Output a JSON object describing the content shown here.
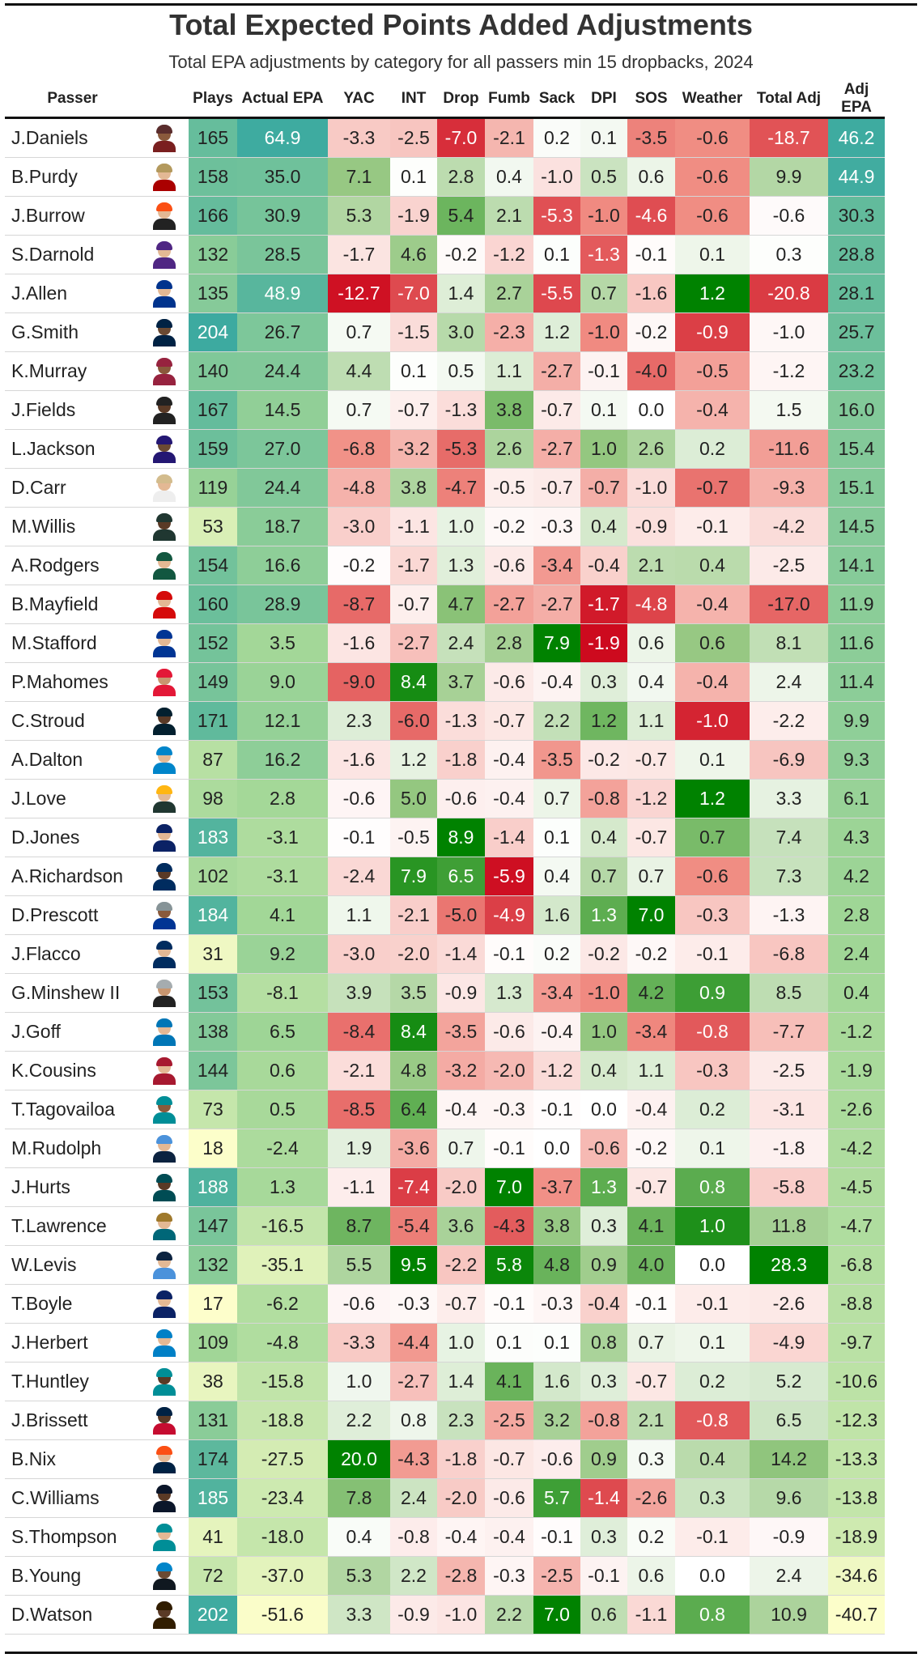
{
  "title": "Total Expected Points Added Adjustments",
  "subtitle": "Total EPA adjustments by category for all passers min 15 dropbacks, 2024",
  "chart_data": {
    "type": "table",
    "title": "Total Expected Points Added Adjustments",
    "subtitle": "Total EPA adjustments by category for all passers min 15 dropbacks, 2024",
    "columns": [
      "Passer",
      "Plays",
      "Actual EPA",
      "YAC",
      "INT",
      "Drop",
      "Fumb",
      "Sack",
      "DPI",
      "SOS",
      "Weather",
      "Total Adj",
      "Adj EPA"
    ],
    "rows": [
      {
        "passer": "J.Daniels",
        "plays": "165",
        "actual": "64.9",
        "yac": "-3.3",
        "int": "-2.5",
        "drop": "-7.0",
        "fumb": "-2.1",
        "sack": "0.2",
        "dpi": "0.1",
        "sos": "-3.5",
        "weather": "-0.6",
        "total": "-18.7",
        "adj": "46.2",
        "team": "#5a2d2d",
        "body": "#7a1f1f",
        "skin": "#8a5a3c"
      },
      {
        "passer": "B.Purdy",
        "plays": "158",
        "actual": "35.0",
        "yac": "7.1",
        "int": "0.1",
        "drop": "2.8",
        "fumb": "0.4",
        "sack": "-1.0",
        "dpi": "0.5",
        "sos": "0.6",
        "weather": "-0.6",
        "total": "9.9",
        "adj": "44.9",
        "team": "#b3995d",
        "body": "#aa0000",
        "skin": "#e3b894"
      },
      {
        "passer": "J.Burrow",
        "plays": "166",
        "actual": "30.9",
        "yac": "5.3",
        "int": "-1.9",
        "drop": "5.4",
        "fumb": "2.1",
        "sack": "-5.3",
        "dpi": "-1.0",
        "sos": "-4.6",
        "weather": "-0.6",
        "total": "-0.6",
        "adj": "30.3",
        "team": "#fb4f14",
        "body": "#222222",
        "skin": "#e3b894"
      },
      {
        "passer": "S.Darnold",
        "plays": "132",
        "actual": "28.5",
        "yac": "-1.7",
        "int": "4.6",
        "drop": "-0.2",
        "fumb": "-1.2",
        "sack": "0.1",
        "dpi": "-1.3",
        "sos": "-0.1",
        "weather": "0.1",
        "total": "0.3",
        "adj": "28.8",
        "team": "#4f2683",
        "body": "#4f2683",
        "skin": "#e3b894"
      },
      {
        "passer": "J.Allen",
        "plays": "135",
        "actual": "48.9",
        "yac": "-12.7",
        "int": "-7.0",
        "drop": "1.4",
        "fumb": "2.7",
        "sack": "-5.5",
        "dpi": "0.7",
        "sos": "-1.6",
        "weather": "1.2",
        "total": "-20.8",
        "adj": "28.1",
        "team": "#00338d",
        "body": "#00338d",
        "skin": "#e3b894"
      },
      {
        "passer": "G.Smith",
        "plays": "204",
        "actual": "26.7",
        "yac": "0.7",
        "int": "-1.5",
        "drop": "3.0",
        "fumb": "-2.3",
        "sack": "1.2",
        "dpi": "-1.0",
        "sos": "-0.2",
        "weather": "-0.9",
        "total": "-1.0",
        "adj": "25.7",
        "team": "#002244",
        "body": "#002244",
        "skin": "#6b4a33"
      },
      {
        "passer": "K.Murray",
        "plays": "140",
        "actual": "24.4",
        "yac": "4.4",
        "int": "0.1",
        "drop": "0.5",
        "fumb": "1.1",
        "sack": "-2.7",
        "dpi": "-0.1",
        "sos": "-4.0",
        "weather": "-0.5",
        "total": "-1.2",
        "adj": "23.2",
        "team": "#97233f",
        "body": "#97233f",
        "skin": "#8a5a3c"
      },
      {
        "passer": "J.Fields",
        "plays": "167",
        "actual": "14.5",
        "yac": "0.7",
        "int": "-0.7",
        "drop": "-1.3",
        "fumb": "3.8",
        "sack": "-0.7",
        "dpi": "0.1",
        "sos": "0.0",
        "weather": "-0.4",
        "total": "1.5",
        "adj": "16.0",
        "team": "#222222",
        "body": "#222222",
        "skin": "#5a3a26"
      },
      {
        "passer": "L.Jackson",
        "plays": "159",
        "actual": "27.0",
        "yac": "-6.8",
        "int": "-3.2",
        "drop": "-5.3",
        "fumb": "2.6",
        "sack": "-2.7",
        "dpi": "1.0",
        "sos": "2.6",
        "weather": "0.2",
        "total": "-11.6",
        "adj": "15.4",
        "team": "#241773",
        "body": "#241773",
        "skin": "#6b4a33"
      },
      {
        "passer": "D.Carr",
        "plays": "119",
        "actual": "24.4",
        "yac": "-4.8",
        "int": "3.8",
        "drop": "-4.7",
        "fumb": "-0.5",
        "sack": "-0.7",
        "dpi": "-0.7",
        "sos": "-1.0",
        "weather": "-0.7",
        "total": "-9.3",
        "adj": "15.1",
        "team": "#d3bc8d",
        "body": "#eeeeee",
        "skin": "#e3b894"
      },
      {
        "passer": "M.Willis",
        "plays": "53",
        "actual": "18.7",
        "yac": "-3.0",
        "int": "-1.1",
        "drop": "1.0",
        "fumb": "-0.2",
        "sack": "-0.3",
        "dpi": "0.4",
        "sos": "-0.9",
        "weather": "-0.1",
        "total": "-4.2",
        "adj": "14.5",
        "team": "#203731",
        "body": "#203731",
        "skin": "#5a3a26"
      },
      {
        "passer": "A.Rodgers",
        "plays": "154",
        "actual": "16.6",
        "yac": "-0.2",
        "int": "-1.7",
        "drop": "1.3",
        "fumb": "-0.6",
        "sack": "-3.4",
        "dpi": "-0.4",
        "sos": "2.1",
        "weather": "0.4",
        "total": "-2.5",
        "adj": "14.1",
        "team": "#125740",
        "body": "#125740",
        "skin": "#e3b894"
      },
      {
        "passer": "B.Mayfield",
        "plays": "160",
        "actual": "28.9",
        "yac": "-8.7",
        "int": "-0.7",
        "drop": "4.7",
        "fumb": "-2.7",
        "sack": "-2.7",
        "dpi": "-1.7",
        "sos": "-4.8",
        "weather": "-0.4",
        "total": "-17.0",
        "adj": "11.9",
        "team": "#d50a0a",
        "body": "#d50a0a",
        "skin": "#e3b894"
      },
      {
        "passer": "M.Stafford",
        "plays": "152",
        "actual": "3.5",
        "yac": "-1.6",
        "int": "-2.7",
        "drop": "2.4",
        "fumb": "2.8",
        "sack": "7.9",
        "dpi": "-1.9",
        "sos": "0.6",
        "weather": "0.6",
        "total": "8.1",
        "adj": "11.6",
        "team": "#003594",
        "body": "#003594",
        "skin": "#e3b894"
      },
      {
        "passer": "P.Mahomes",
        "plays": "149",
        "actual": "9.0",
        "yac": "-9.0",
        "int": "8.4",
        "drop": "3.7",
        "fumb": "-0.6",
        "sack": "-0.4",
        "dpi": "0.3",
        "sos": "0.4",
        "weather": "-0.4",
        "total": "2.4",
        "adj": "11.4",
        "team": "#e31837",
        "body": "#e31837",
        "skin": "#c89670"
      },
      {
        "passer": "C.Stroud",
        "plays": "171",
        "actual": "12.1",
        "yac": "2.3",
        "int": "-6.0",
        "drop": "-1.3",
        "fumb": "-0.7",
        "sack": "2.2",
        "dpi": "1.2",
        "sos": "1.1",
        "weather": "-1.0",
        "total": "-2.2",
        "adj": "9.9",
        "team": "#03202f",
        "body": "#03202f",
        "skin": "#5a3a26"
      },
      {
        "passer": "A.Dalton",
        "plays": "87",
        "actual": "16.2",
        "yac": "-1.6",
        "int": "1.2",
        "drop": "-1.8",
        "fumb": "-0.4",
        "sack": "-3.5",
        "dpi": "-0.2",
        "sos": "-0.7",
        "weather": "0.1",
        "total": "-6.9",
        "adj": "9.3",
        "team": "#0085ca",
        "body": "#0085ca",
        "skin": "#e3b894"
      },
      {
        "passer": "J.Love",
        "plays": "98",
        "actual": "2.8",
        "yac": "-0.6",
        "int": "5.0",
        "drop": "-0.6",
        "fumb": "-0.4",
        "sack": "0.7",
        "dpi": "-0.8",
        "sos": "-1.2",
        "weather": "1.2",
        "total": "3.3",
        "adj": "6.1",
        "team": "#ffb612",
        "body": "#203731",
        "skin": "#e3b894"
      },
      {
        "passer": "D.Jones",
        "plays": "183",
        "actual": "-3.1",
        "yac": "-0.1",
        "int": "-0.5",
        "drop": "8.9",
        "fumb": "-1.4",
        "sack": "0.1",
        "dpi": "0.4",
        "sos": "-0.7",
        "weather": "0.7",
        "total": "7.4",
        "adj": "4.3",
        "team": "#0b2265",
        "body": "#0b2265",
        "skin": "#e3b894"
      },
      {
        "passer": "A.Richardson",
        "plays": "102",
        "actual": "-3.1",
        "yac": "-2.4",
        "int": "7.9",
        "drop": "6.5",
        "fumb": "-5.9",
        "sack": "0.4",
        "dpi": "0.7",
        "sos": "0.7",
        "weather": "-0.6",
        "total": "7.3",
        "adj": "4.2",
        "team": "#002c5f",
        "body": "#002c5f",
        "skin": "#5a3a26"
      },
      {
        "passer": "D.Prescott",
        "plays": "184",
        "actual": "4.1",
        "yac": "1.1",
        "int": "-2.1",
        "drop": "-5.0",
        "fumb": "-4.9",
        "sack": "1.6",
        "dpi": "1.3",
        "sos": "7.0",
        "weather": "-0.3",
        "total": "-1.3",
        "adj": "2.8",
        "team": "#869397",
        "body": "#003594",
        "skin": "#8a5a3c"
      },
      {
        "passer": "J.Flacco",
        "plays": "31",
        "actual": "9.2",
        "yac": "-3.0",
        "int": "-2.0",
        "drop": "-1.4",
        "fumb": "-0.1",
        "sack": "0.2",
        "dpi": "-0.2",
        "sos": "-0.2",
        "weather": "-0.1",
        "total": "-6.8",
        "adj": "2.4",
        "team": "#002c5f",
        "body": "#002c5f",
        "skin": "#e3b894"
      },
      {
        "passer": "G.Minshew II",
        "plays": "153",
        "actual": "-8.1",
        "yac": "3.9",
        "int": "3.5",
        "drop": "-0.9",
        "fumb": "1.3",
        "sack": "-3.4",
        "dpi": "-1.0",
        "sos": "4.2",
        "weather": "0.9",
        "total": "8.5",
        "adj": "0.4",
        "team": "#a5acaf",
        "body": "#222222",
        "skin": "#c89670"
      },
      {
        "passer": "J.Goff",
        "plays": "138",
        "actual": "6.5",
        "yac": "-8.4",
        "int": "8.4",
        "drop": "-3.5",
        "fumb": "-0.6",
        "sack": "-0.4",
        "dpi": "1.0",
        "sos": "-3.4",
        "weather": "-0.8",
        "total": "-7.7",
        "adj": "-1.2",
        "team": "#0076b6",
        "body": "#0076b6",
        "skin": "#e3b894"
      },
      {
        "passer": "K.Cousins",
        "plays": "144",
        "actual": "0.6",
        "yac": "-2.1",
        "int": "4.8",
        "drop": "-3.2",
        "fumb": "-2.0",
        "sack": "-1.2",
        "dpi": "0.4",
        "sos": "1.1",
        "weather": "-0.3",
        "total": "-2.5",
        "adj": "-1.9",
        "team": "#a71930",
        "body": "#a71930",
        "skin": "#e3b894"
      },
      {
        "passer": "T.Tagovailoa",
        "plays": "73",
        "actual": "0.5",
        "yac": "-8.5",
        "int": "6.4",
        "drop": "-0.4",
        "fumb": "-0.3",
        "sack": "-0.1",
        "dpi": "0.0",
        "sos": "-0.4",
        "weather": "0.2",
        "total": "-3.1",
        "adj": "-2.6",
        "team": "#008e97",
        "body": "#008e97",
        "skin": "#8a5a3c"
      },
      {
        "passer": "M.Rudolph",
        "plays": "18",
        "actual": "-2.4",
        "yac": "1.9",
        "int": "-3.6",
        "drop": "0.7",
        "fumb": "-0.1",
        "sack": "0.0",
        "dpi": "-0.6",
        "sos": "-0.2",
        "weather": "0.1",
        "total": "-1.8",
        "adj": "-4.2",
        "team": "#4b92db",
        "body": "#0c2340",
        "skin": "#e3b894"
      },
      {
        "passer": "J.Hurts",
        "plays": "188",
        "actual": "1.3",
        "yac": "-1.1",
        "int": "-7.4",
        "drop": "-2.0",
        "fumb": "7.0",
        "sack": "-3.7",
        "dpi": "1.3",
        "sos": "-0.7",
        "weather": "0.8",
        "total": "-5.8",
        "adj": "-4.5",
        "team": "#004c54",
        "body": "#004c54",
        "skin": "#5a3a26"
      },
      {
        "passer": "T.Lawrence",
        "plays": "147",
        "actual": "-16.5",
        "yac": "8.7",
        "int": "-5.4",
        "drop": "3.6",
        "fumb": "-4.3",
        "sack": "3.8",
        "dpi": "0.3",
        "sos": "4.1",
        "weather": "1.0",
        "total": "11.8",
        "adj": "-4.7",
        "team": "#9f792c",
        "body": "#006778",
        "skin": "#e3b894"
      },
      {
        "passer": "W.Levis",
        "plays": "132",
        "actual": "-35.1",
        "yac": "5.5",
        "int": "9.5",
        "drop": "-2.2",
        "fumb": "5.8",
        "sack": "4.8",
        "dpi": "0.9",
        "sos": "4.0",
        "weather": "0.0",
        "total": "28.3",
        "adj": "-6.8",
        "team": "#0c2340",
        "body": "#4b92db",
        "skin": "#e3b894"
      },
      {
        "passer": "T.Boyle",
        "plays": "17",
        "actual": "-6.2",
        "yac": "-0.6",
        "int": "-0.3",
        "drop": "-0.7",
        "fumb": "-0.1",
        "sack": "-0.3",
        "dpi": "-0.4",
        "sos": "-0.1",
        "weather": "-0.1",
        "total": "-2.6",
        "adj": "-8.8",
        "team": "#0b2265",
        "body": "#0b2265",
        "skin": "#e3b894"
      },
      {
        "passer": "J.Herbert",
        "plays": "109",
        "actual": "-4.8",
        "yac": "-3.3",
        "int": "-4.4",
        "drop": "1.0",
        "fumb": "0.1",
        "sack": "0.1",
        "dpi": "0.8",
        "sos": "0.7",
        "weather": "0.1",
        "total": "-4.9",
        "adj": "-9.7",
        "team": "#0080c6",
        "body": "#0080c6",
        "skin": "#e3b894"
      },
      {
        "passer": "T.Huntley",
        "plays": "38",
        "actual": "-15.8",
        "yac": "1.0",
        "int": "-2.7",
        "drop": "1.4",
        "fumb": "4.1",
        "sack": "1.6",
        "dpi": "0.3",
        "sos": "-0.7",
        "weather": "0.2",
        "total": "5.2",
        "adj": "-10.6",
        "team": "#008e97",
        "body": "#008e97",
        "skin": "#5a3a26"
      },
      {
        "passer": "J.Brissett",
        "plays": "131",
        "actual": "-18.8",
        "yac": "2.2",
        "int": "0.8",
        "drop": "2.3",
        "fumb": "-2.5",
        "sack": "3.2",
        "dpi": "-0.8",
        "sos": "2.1",
        "weather": "-0.8",
        "total": "6.5",
        "adj": "-12.3",
        "team": "#002244",
        "body": "#c60c30",
        "skin": "#5a3a26"
      },
      {
        "passer": "B.Nix",
        "plays": "174",
        "actual": "-27.5",
        "yac": "20.0",
        "int": "-4.3",
        "drop": "-1.8",
        "fumb": "-0.7",
        "sack": "-0.6",
        "dpi": "0.9",
        "sos": "0.3",
        "weather": "0.4",
        "total": "14.2",
        "adj": "-13.3",
        "team": "#fb4f14",
        "body": "#002244",
        "skin": "#e3b894"
      },
      {
        "passer": "C.Williams",
        "plays": "185",
        "actual": "-23.4",
        "yac": "7.8",
        "int": "2.4",
        "drop": "-2.0",
        "fumb": "-0.6",
        "sack": "5.7",
        "dpi": "-1.4",
        "sos": "-2.6",
        "weather": "0.3",
        "total": "9.6",
        "adj": "-13.8",
        "team": "#0b162a",
        "body": "#0b162a",
        "skin": "#5a3a26"
      },
      {
        "passer": "S.Thompson",
        "plays": "41",
        "actual": "-18.0",
        "yac": "0.4",
        "int": "-0.8",
        "drop": "-0.4",
        "fumb": "-0.4",
        "sack": "-0.1",
        "dpi": "0.3",
        "sos": "0.2",
        "weather": "-0.1",
        "total": "-0.9",
        "adj": "-18.9",
        "team": "#008e97",
        "body": "#008e97",
        "skin": "#e3b894"
      },
      {
        "passer": "B.Young",
        "plays": "72",
        "actual": "-37.0",
        "yac": "5.3",
        "int": "2.2",
        "drop": "-2.8",
        "fumb": "-0.3",
        "sack": "-2.5",
        "dpi": "-0.1",
        "sos": "0.6",
        "weather": "0.0",
        "total": "2.4",
        "adj": "-34.6",
        "team": "#0085ca",
        "body": "#101820",
        "skin": "#6b4a33"
      },
      {
        "passer": "D.Watson",
        "plays": "202",
        "actual": "-51.6",
        "yac": "3.3",
        "int": "-0.9",
        "drop": "-1.0",
        "fumb": "2.2",
        "sack": "7.0",
        "dpi": "0.6",
        "sos": "-1.1",
        "weather": "0.8",
        "total": "10.9",
        "adj": "-40.7",
        "team": "#311d00",
        "body": "#311d00",
        "skin": "#5a3a26"
      }
    ]
  }
}
